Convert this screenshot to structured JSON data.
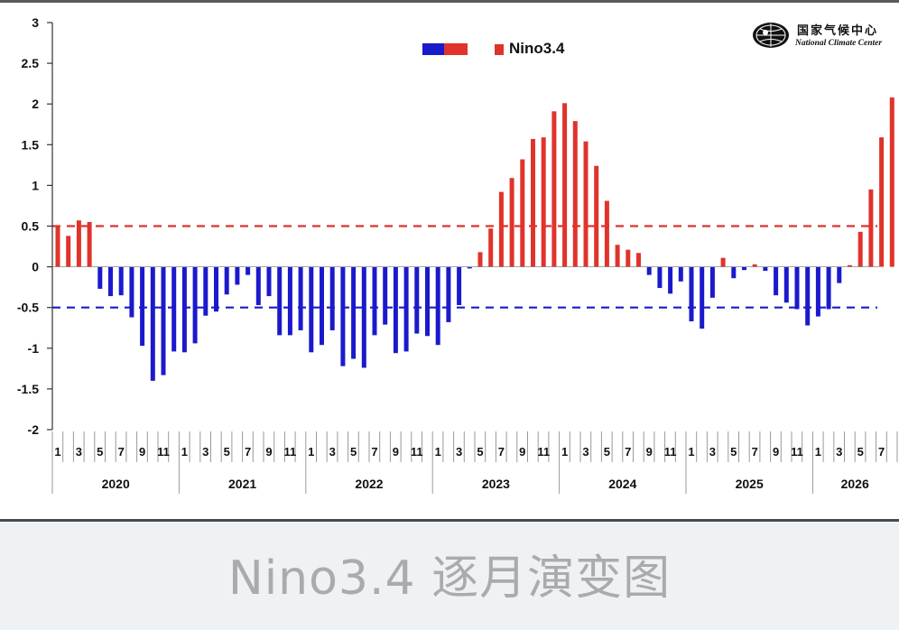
{
  "caption": "Nino3.4 逐月演变图",
  "logo": {
    "name_cn": "国家气候中心",
    "name_en": "National Climate Center"
  },
  "legend": {
    "label": "Nino3.4"
  },
  "colors": {
    "positive": "#e0332b",
    "negative": "#1a1acc",
    "axis": "#333333"
  },
  "chart_data": {
    "type": "bar",
    "y_ticks": [
      "3",
      "2.5",
      "2",
      "1.5",
      "1",
      "0.5",
      "0",
      "-0.5",
      "-1",
      "-1.5",
      "-2"
    ],
    "ylim": [
      -2,
      3
    ],
    "thresholds": [
      0.5,
      -0.5
    ],
    "years": [
      "2020",
      "2021",
      "2022",
      "2023",
      "2024",
      "2025",
      "2026"
    ],
    "month_labels": [
      "1",
      "3",
      "5",
      "7",
      "9",
      "11"
    ],
    "series": [
      {
        "values": [
          0.5,
          0.38,
          0.57,
          0.55,
          -0.27,
          -0.36,
          -0.35,
          -0.62,
          -0.97,
          -1.4,
          -1.33,
          -1.04,
          -1.05,
          -0.94,
          -0.6,
          -0.55,
          -0.34,
          -0.22,
          -0.1,
          -0.47,
          -0.36,
          -0.84,
          -0.84,
          -0.78,
          -1.05,
          -0.96,
          -0.78,
          -1.22,
          -1.13,
          -1.24,
          -0.84,
          -0.71,
          -1.06,
          -1.04,
          -0.82,
          -0.85,
          -0.96,
          -0.68,
          -0.47,
          -0.02,
          0.18,
          0.47,
          0.92,
          1.09,
          1.32,
          1.57,
          1.59,
          1.91,
          2.01,
          1.79,
          1.54,
          1.24,
          0.81,
          0.27,
          0.21,
          0.17,
          -0.1,
          -0.26,
          -0.33,
          -0.18,
          -0.67,
          -0.76,
          -0.38,
          0.11,
          -0.14,
          -0.04,
          0.03,
          -0.05,
          -0.35,
          -0.44,
          -0.52,
          -0.72,
          -0.61,
          -0.52,
          -0.2,
          0.02,
          0.43,
          0.95,
          1.59,
          2.08
        ]
      }
    ]
  }
}
